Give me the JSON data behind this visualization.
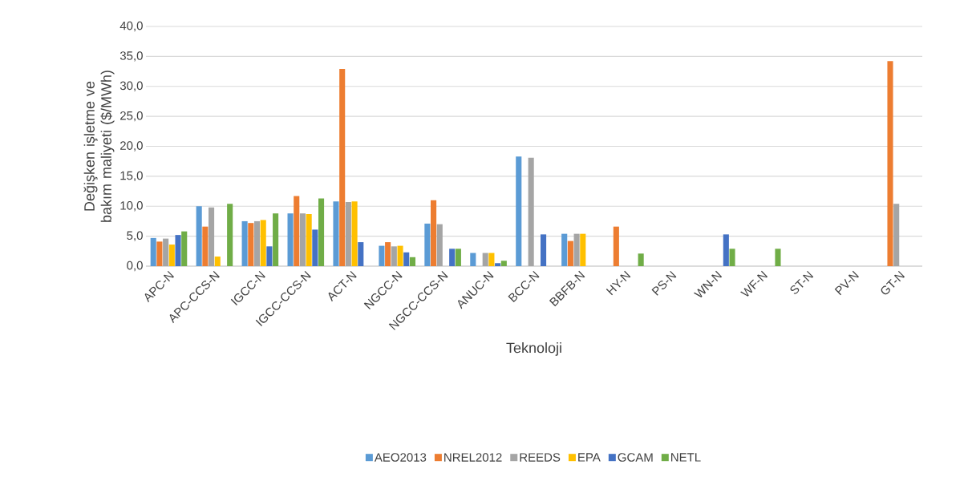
{
  "chart_data": {
    "type": "bar",
    "xlabel": "Teknoloji",
    "ylabel": "Değişken işletme ve bakım maliyeti ($/MWh)",
    "categories": [
      "APC-N",
      "APC-CCS-N",
      "IGCC-N",
      "IGCC-CCS-N",
      "ACT-N",
      "NGCC-N",
      "NGCC-CCS-N",
      "ANUC-N",
      "BCC-N",
      "BBFB-N",
      "HY-N",
      "PS-N",
      "WN-N",
      "WF-N",
      "ST-N",
      "PV-N",
      "GT-N"
    ],
    "series": [
      {
        "name": "AEO2013",
        "color": "#5b9bd5",
        "values": [
          4.7,
          10.0,
          7.5,
          8.8,
          10.8,
          3.4,
          7.1,
          2.2,
          18.3,
          5.4,
          null,
          null,
          null,
          null,
          null,
          null,
          null
        ]
      },
      {
        "name": "NREL2012",
        "color": "#ed7d31",
        "values": [
          4.1,
          6.6,
          7.2,
          11.7,
          32.9,
          4.0,
          11.0,
          null,
          null,
          4.2,
          6.6,
          null,
          null,
          null,
          null,
          null,
          34.2
        ]
      },
      {
        "name": "REEDS",
        "color": "#a5a5a5",
        "values": [
          4.6,
          9.8,
          7.5,
          8.8,
          10.7,
          3.3,
          7.0,
          2.2,
          18.1,
          5.4,
          null,
          null,
          null,
          null,
          null,
          null,
          10.4
        ]
      },
      {
        "name": "EPA",
        "color": "#ffc000",
        "values": [
          3.6,
          1.6,
          7.7,
          8.7,
          10.8,
          3.4,
          null,
          2.2,
          null,
          5.4,
          null,
          null,
          null,
          null,
          null,
          null,
          null
        ]
      },
      {
        "name": "GCAM",
        "color": "#4472c4",
        "values": [
          5.2,
          null,
          3.3,
          6.1,
          4.0,
          2.3,
          2.9,
          0.5,
          5.3,
          null,
          null,
          null,
          5.3,
          null,
          null,
          null,
          null
        ]
      },
      {
        "name": "NETL",
        "color": "#70ad47",
        "values": [
          5.8,
          10.4,
          8.8,
          11.3,
          null,
          1.5,
          2.9,
          0.9,
          null,
          null,
          2.1,
          null,
          2.9,
          2.9,
          null,
          null,
          null
        ]
      }
    ],
    "ylim": [
      0,
      40
    ],
    "yticks": [
      {
        "value": 0,
        "label": "0,0"
      },
      {
        "value": 5,
        "label": "5,0"
      },
      {
        "value": 10,
        "label": "10,0"
      },
      {
        "value": 15,
        "label": "15,0"
      },
      {
        "value": 20,
        "label": "20,0"
      },
      {
        "value": 25,
        "label": "25,0"
      },
      {
        "value": 30,
        "label": "30,0"
      },
      {
        "value": 35,
        "label": "35,0"
      },
      {
        "value": 40,
        "label": "40,0"
      }
    ],
    "grid": "y",
    "legend": "bottom"
  }
}
